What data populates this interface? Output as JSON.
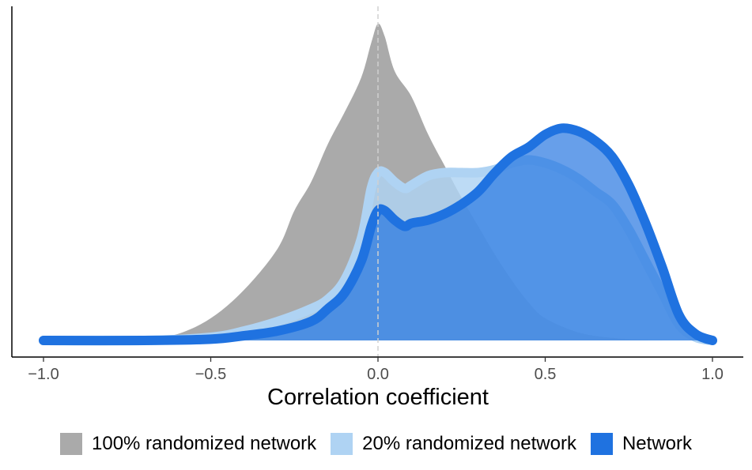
{
  "chart_data": {
    "type": "area",
    "title": "",
    "xlabel": "Correlation coefficient",
    "ylabel": "",
    "xlim": [
      -1.05,
      1.05
    ],
    "ylim": [
      0,
      1.0
    ],
    "x_ticks": [
      -1.0,
      -0.5,
      0.0,
      0.5,
      1.0
    ],
    "x_tick_labels": [
      "−1.0",
      "−0.5",
      "0.0",
      "0.5",
      "1.0"
    ],
    "y_ticks_shown": false,
    "grid": false,
    "reference_line": {
      "x": 0.0,
      "style": "dashed",
      "color": "#cccccc"
    },
    "legend_position": "bottom",
    "series": [
      {
        "name": "100% randomized network",
        "fill": "#aaaaaa",
        "fill_opacity": 1.0,
        "stroke": "none",
        "x": [
          -1.0,
          -0.8,
          -0.7,
          -0.6,
          -0.5,
          -0.4,
          -0.3,
          -0.25,
          -0.2,
          -0.15,
          -0.1,
          -0.05,
          -0.02,
          0.0,
          0.02,
          0.05,
          0.1,
          0.15,
          0.2,
          0.25,
          0.3,
          0.35,
          0.4,
          0.45,
          0.5,
          0.6,
          0.7,
          0.8,
          0.9,
          1.0
        ],
        "y": [
          0.0,
          0.0,
          0.002,
          0.02,
          0.07,
          0.16,
          0.29,
          0.41,
          0.5,
          0.62,
          0.72,
          0.83,
          0.94,
          1.0,
          0.96,
          0.85,
          0.77,
          0.65,
          0.55,
          0.45,
          0.36,
          0.27,
          0.19,
          0.12,
          0.07,
          0.025,
          0.008,
          0.002,
          0.0,
          0.0
        ]
      },
      {
        "name": "20% randomized network",
        "fill": "#afd3f3",
        "fill_opacity": 0.82,
        "stroke": "#afd3f3",
        "x": [
          -1.0,
          -0.7,
          -0.5,
          -0.4,
          -0.3,
          -0.2,
          -0.15,
          -0.1,
          -0.05,
          -0.02,
          0.0,
          0.02,
          0.05,
          0.08,
          0.1,
          0.15,
          0.2,
          0.25,
          0.3,
          0.35,
          0.4,
          0.45,
          0.5,
          0.55,
          0.6,
          0.65,
          0.7,
          0.75,
          0.8,
          0.85,
          0.9,
          0.95,
          1.0
        ],
        "y": [
          0.0,
          0.0,
          0.01,
          0.03,
          0.06,
          0.1,
          0.13,
          0.19,
          0.32,
          0.48,
          0.53,
          0.53,
          0.5,
          0.48,
          0.49,
          0.52,
          0.53,
          0.53,
          0.53,
          0.54,
          0.56,
          0.57,
          0.56,
          0.54,
          0.51,
          0.47,
          0.43,
          0.35,
          0.25,
          0.15,
          0.05,
          0.01,
          0.0
        ]
      },
      {
        "name": "Network",
        "fill": "#1f72e0",
        "fill_opacity": 0.68,
        "stroke": "#1f72e0",
        "x": [
          -1.0,
          -0.7,
          -0.5,
          -0.4,
          -0.3,
          -0.2,
          -0.15,
          -0.1,
          -0.05,
          -0.02,
          0.0,
          0.02,
          0.05,
          0.08,
          0.1,
          0.15,
          0.2,
          0.25,
          0.3,
          0.35,
          0.4,
          0.45,
          0.5,
          0.55,
          0.6,
          0.65,
          0.7,
          0.75,
          0.8,
          0.85,
          0.9,
          0.95,
          1.0
        ],
        "y": [
          0.0,
          0.0,
          0.004,
          0.015,
          0.03,
          0.06,
          0.1,
          0.15,
          0.25,
          0.36,
          0.41,
          0.41,
          0.38,
          0.36,
          0.37,
          0.38,
          0.4,
          0.43,
          0.47,
          0.53,
          0.58,
          0.61,
          0.65,
          0.67,
          0.66,
          0.63,
          0.58,
          0.49,
          0.37,
          0.23,
          0.08,
          0.02,
          0.0
        ]
      }
    ]
  },
  "legend": {
    "items": [
      {
        "label": "100% randomized network",
        "color": "#aaaaaa"
      },
      {
        "label": "20% randomized network",
        "color": "#afd3f3"
      },
      {
        "label": "Network",
        "color": "#1f72e0"
      }
    ]
  }
}
